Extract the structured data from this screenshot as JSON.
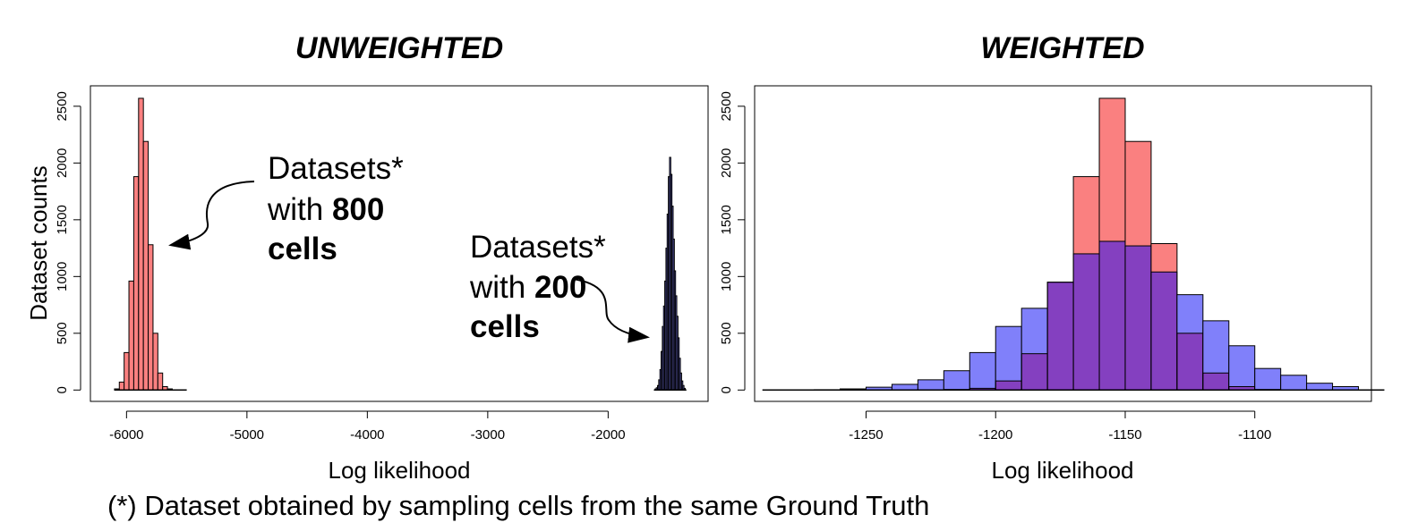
{
  "footnote": "(*) Dataset obtained by sampling cells  from the same Ground Truth",
  "colors": {
    "red_fill": "#fa8080",
    "blue_fill": "#8080fa",
    "overlap_fill": "#8440c0",
    "border": "#000000"
  },
  "chart_data": [
    {
      "type": "histogram",
      "title": "UNWEIGHTED",
      "xlabel": "Log likelihood",
      "ylabel": "Dataset counts",
      "xlim": [
        -6300,
        -1170
      ],
      "ylim": [
        -100,
        2680
      ],
      "xticks": [
        -6000,
        -5000,
        -4000,
        -3000,
        -2000
      ],
      "xtick_labels": [
        "-6000",
        "-5000",
        "-4000",
        "-3000",
        "-2000"
      ],
      "yticks": [
        0,
        500,
        1000,
        1500,
        2000,
        2500
      ],
      "ytick_labels": [
        "0",
        "500",
        "1000",
        "1500",
        "2000",
        "2500"
      ],
      "series": [
        {
          "fill": "red",
          "bin_width": 40,
          "bin_starts": [
            -6100,
            -6060,
            -6020,
            -5980,
            -5940,
            -5900,
            -5860,
            -5820,
            -5780,
            -5740,
            -5700,
            -5660,
            -5620,
            -5580,
            -5540
          ],
          "counts": [
            10,
            70,
            330,
            960,
            1880,
            2570,
            2190,
            1280,
            500,
            150,
            30,
            10,
            0,
            0,
            0
          ]
        },
        {
          "fill": "blue",
          "bin_width": 10,
          "bin_starts": [
            -1620,
            -1610,
            -1600,
            -1590,
            -1580,
            -1570,
            -1560,
            -1550,
            -1540,
            -1530,
            -1520,
            -1510,
            -1500,
            -1490,
            -1480,
            -1470,
            -1460,
            -1450,
            -1440,
            -1430,
            -1420,
            -1410,
            -1400,
            -1390,
            -1380,
            -1370,
            -1360
          ],
          "counts": [
            0,
            10,
            20,
            40,
            90,
            180,
            340,
            560,
            740,
            960,
            1250,
            1550,
            1880,
            2050,
            1900,
            1620,
            1330,
            1050,
            830,
            650,
            460,
            280,
            150,
            80,
            40,
            15,
            0
          ]
        }
      ],
      "annotations": [
        {
          "lines": [
            "Datasets*",
            "with ",
            "cells"
          ],
          "bold_part": "800",
          "points_to": "red"
        },
        {
          "lines": [
            "Datasets*",
            "with ",
            "cells"
          ],
          "bold_part": "200",
          "points_to": "blue"
        }
      ]
    },
    {
      "type": "histogram",
      "title": "WEIGHTED",
      "xlabel": "Log likelihood",
      "ylabel": "",
      "xlim": [
        -1293,
        -1055
      ],
      "ylim": [
        -100,
        2680
      ],
      "xticks": [
        -1250,
        -1200,
        -1150,
        -1100
      ],
      "xtick_labels": [
        "-1250",
        "-1200",
        "-1150",
        "-1100"
      ],
      "yticks": [
        0,
        500,
        1000,
        1500,
        2000,
        2500
      ],
      "ytick_labels": [
        "0",
        "500",
        "1000",
        "1500",
        "2000",
        "2500"
      ],
      "bin_width": 10,
      "bin_starts": [
        -1290,
        -1280,
        -1270,
        -1260,
        -1250,
        -1240,
        -1230,
        -1220,
        -1210,
        -1200,
        -1190,
        -1180,
        -1170,
        -1160,
        -1150,
        -1140,
        -1130,
        -1120,
        -1110,
        -1100,
        -1090,
        -1080,
        -1070,
        -1060
      ],
      "series": [
        {
          "fill": "red",
          "counts": [
            0,
            0,
            0,
            0,
            0,
            0,
            0,
            5,
            15,
            80,
            320,
            950,
            1880,
            2570,
            2190,
            1290,
            500,
            150,
            30,
            5,
            0,
            0,
            0,
            0
          ]
        },
        {
          "fill": "blue",
          "counts": [
            0,
            0,
            3,
            10,
            25,
            50,
            90,
            170,
            330,
            560,
            720,
            950,
            1200,
            1310,
            1270,
            1040,
            840,
            610,
            390,
            190,
            130,
            60,
            30,
            0
          ]
        }
      ]
    }
  ]
}
